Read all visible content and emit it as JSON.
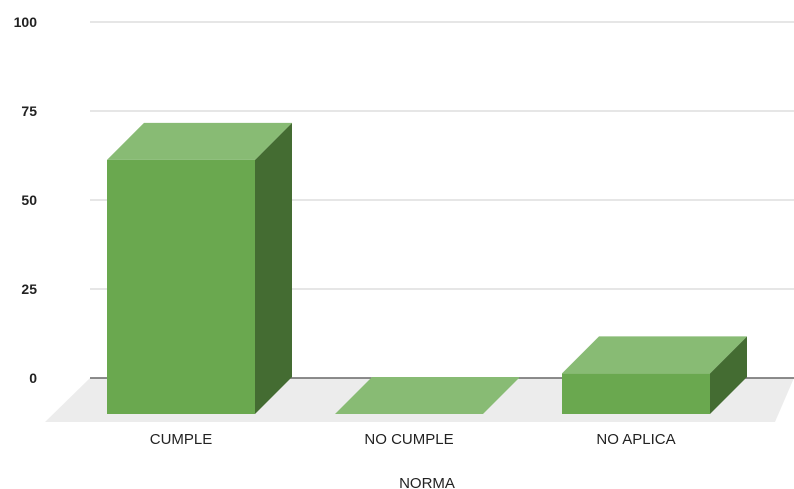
{
  "chart_data": {
    "type": "bar",
    "style": "3d",
    "categories": [
      "CUMPLE",
      "NO CUMPLE",
      "NO APLICA"
    ],
    "values": [
      71.4,
      0,
      11.4
    ],
    "xlabel": "NORMA",
    "ylabel": "",
    "ylim": [
      0,
      100
    ],
    "yticks": [
      "0",
      "25",
      "50",
      "75",
      "100"
    ],
    "grid": true,
    "colors": {
      "front": "#6aa84f",
      "top": "#88bb74",
      "side": "#446c32",
      "floor": "#ececec",
      "grid": "#cccccc",
      "baseline": "#666666"
    }
  }
}
